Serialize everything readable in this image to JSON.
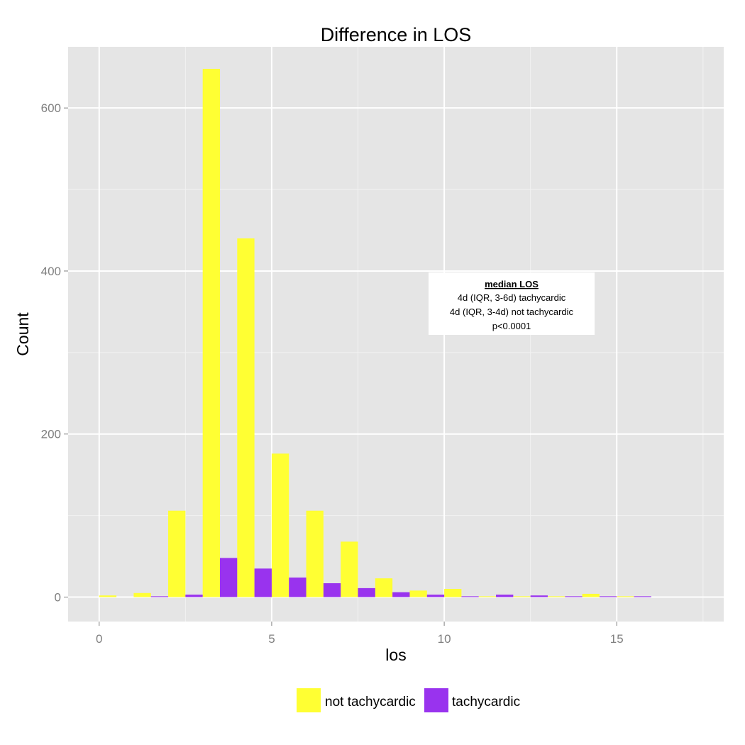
{
  "chart_data": {
    "type": "bar",
    "title": "Difference in LOS",
    "xlabel": "los",
    "ylabel": "Count",
    "xlim": [
      -0.9,
      18.1
    ],
    "ylim": [
      -30,
      675
    ],
    "x_ticks": [
      0,
      5,
      10,
      15
    ],
    "y_ticks": [
      0,
      200,
      400,
      600
    ],
    "grid": true,
    "legend_position": "bottom",
    "bin_width": 1,
    "x": [
      0,
      1,
      2,
      3,
      4,
      5,
      6,
      7,
      8,
      9,
      10,
      11,
      12,
      13,
      14,
      15
    ],
    "series": [
      {
        "name": "not tachycardic",
        "color": "#ffff33",
        "values": [
          2,
          5,
          106,
          648,
          440,
          176,
          106,
          68,
          23,
          8,
          10,
          1,
          1,
          1,
          4,
          1
        ]
      },
      {
        "name": "tachycardic",
        "color": "#9933ee",
        "values": [
          0,
          1,
          3,
          48,
          35,
          24,
          17,
          11,
          6,
          3,
          1,
          3,
          2,
          1,
          1,
          1
        ]
      }
    ],
    "annotation": {
      "title": "median LOS",
      "lines": [
        "4d (IQR, 3-6d) tachycardic",
        "4d (IQR, 3-4d) not tachycardic",
        "p<0.0001"
      ]
    }
  }
}
